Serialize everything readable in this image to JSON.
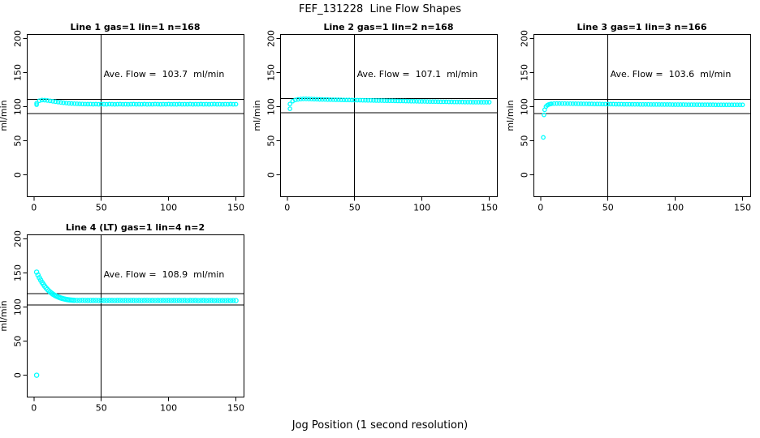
{
  "page": {
    "title": "FEF_131228  Line Flow Shapes",
    "xlabel_bottom": "Jog Position (1 second resolution)"
  },
  "style": {
    "point_color": "#00ffff",
    "axis_color": "#000000",
    "background": "#ffffff",
    "marker_stroke_width": 1.3
  },
  "chart_data": [
    {
      "type": "scatter",
      "title": "Line 1 gas=1 lin=1 n=168",
      "n": 168,
      "ave_flow": 103.7,
      "ave_flow_label": "Ave. Flow =  103.7  ml/min",
      "ylabel": "ml/min",
      "xticks": [
        0,
        50,
        100,
        150
      ],
      "yticks": [
        0,
        50,
        100,
        150,
        200
      ],
      "xlim": [
        -5,
        156
      ],
      "ylim": [
        -32,
        206
      ],
      "vline": 50,
      "hlines": [
        111,
        90
      ],
      "marker_radius": 2.2,
      "points": [
        [
          2,
          103
        ],
        [
          2,
          105.2
        ],
        [
          4,
          108.8
        ],
        [
          6,
          109.8
        ],
        [
          8,
          109.6
        ],
        [
          10,
          109.2
        ],
        [
          12,
          108.6
        ],
        [
          14,
          108.0
        ],
        [
          16,
          107.4
        ],
        [
          18,
          106.8
        ],
        [
          20,
          106.3
        ],
        [
          22,
          105.8
        ],
        [
          24,
          105.4
        ],
        [
          26,
          105.0
        ],
        [
          28,
          104.7
        ],
        [
          30,
          104.5
        ],
        [
          32,
          104.3
        ],
        [
          34,
          104.1
        ],
        [
          36,
          104.0
        ],
        [
          38,
          103.9
        ],
        [
          40,
          103.8
        ],
        [
          42,
          103.9
        ],
        [
          44,
          103.7
        ],
        [
          46,
          103.8
        ],
        [
          48,
          103.6
        ],
        [
          50,
          103.8
        ],
        [
          52,
          103.7
        ],
        [
          54,
          103.6
        ],
        [
          56,
          103.8
        ],
        [
          58,
          103.7
        ],
        [
          60,
          103.5
        ],
        [
          62,
          103.7
        ],
        [
          64,
          103.8
        ],
        [
          66,
          103.6
        ],
        [
          68,
          103.7
        ],
        [
          70,
          103.5
        ],
        [
          72,
          103.7
        ],
        [
          74,
          103.8
        ],
        [
          76,
          103.6
        ],
        [
          78,
          103.7
        ],
        [
          80,
          103.6
        ],
        [
          82,
          103.8
        ],
        [
          84,
          103.5
        ],
        [
          86,
          103.7
        ],
        [
          88,
          103.6
        ],
        [
          90,
          103.8
        ],
        [
          92,
          103.7
        ],
        [
          94,
          103.5
        ],
        [
          96,
          103.7
        ],
        [
          98,
          103.6
        ],
        [
          100,
          103.8
        ],
        [
          102,
          103.6
        ],
        [
          104,
          103.7
        ],
        [
          106,
          103.5
        ],
        [
          108,
          103.8
        ],
        [
          110,
          103.6
        ],
        [
          112,
          103.7
        ],
        [
          114,
          103.6
        ],
        [
          116,
          103.8
        ],
        [
          118,
          103.5
        ],
        [
          120,
          103.7
        ],
        [
          122,
          103.6
        ],
        [
          124,
          103.8
        ],
        [
          126,
          103.6
        ],
        [
          128,
          103.7
        ],
        [
          130,
          103.5
        ],
        [
          132,
          103.7
        ],
        [
          134,
          103.8
        ],
        [
          136,
          103.6
        ],
        [
          138,
          103.7
        ],
        [
          140,
          103.5
        ],
        [
          142,
          103.7
        ],
        [
          144,
          103.6
        ],
        [
          146,
          103.8
        ],
        [
          148,
          103.6
        ],
        [
          150,
          103.7
        ]
      ]
    },
    {
      "type": "scatter",
      "title": "Line 2 gas=1 lin=2 n=168",
      "n": 168,
      "ave_flow": 107.1,
      "ave_flow_label": "Ave. Flow =  107.1  ml/min",
      "ylabel": "ml/min",
      "xticks": [
        0,
        50,
        100,
        150
      ],
      "yticks": [
        0,
        50,
        100,
        150,
        200
      ],
      "xlim": [
        -5,
        156
      ],
      "ylim": [
        -32,
        206
      ],
      "vline": 50,
      "hlines": [
        112,
        91
      ],
      "marker_radius": 2.2,
      "points": [
        [
          2,
          97
        ],
        [
          2,
          104
        ],
        [
          4,
          108.2
        ],
        [
          6,
          109.9
        ],
        [
          8,
          110.8
        ],
        [
          10,
          111.3
        ],
        [
          12,
          111.5
        ],
        [
          14,
          111.5
        ],
        [
          16,
          111.4
        ],
        [
          18,
          111.3
        ],
        [
          20,
          111.1
        ],
        [
          22,
          111.0
        ],
        [
          24,
          110.8
        ],
        [
          26,
          110.7
        ],
        [
          28,
          110.6
        ],
        [
          30,
          110.5
        ],
        [
          32,
          110.4
        ],
        [
          34,
          110.3
        ],
        [
          36,
          110.2
        ],
        [
          38,
          110.2
        ],
        [
          40,
          110.1
        ],
        [
          42,
          110.0
        ],
        [
          44,
          109.9
        ],
        [
          46,
          109.9
        ],
        [
          48,
          109.8
        ],
        [
          50,
          109.7
        ],
        [
          52,
          109.6
        ],
        [
          54,
          109.6
        ],
        [
          56,
          109.5
        ],
        [
          58,
          109.4
        ],
        [
          60,
          109.3
        ],
        [
          62,
          109.3
        ],
        [
          64,
          109.2
        ],
        [
          66,
          109.1
        ],
        [
          68,
          109.0
        ],
        [
          70,
          109.0
        ],
        [
          72,
          108.9
        ],
        [
          74,
          108.8
        ],
        [
          76,
          108.7
        ],
        [
          78,
          108.7
        ],
        [
          80,
          108.6
        ],
        [
          82,
          108.5
        ],
        [
          84,
          108.4
        ],
        [
          86,
          108.4
        ],
        [
          88,
          108.3
        ],
        [
          90,
          108.2
        ],
        [
          92,
          108.1
        ],
        [
          94,
          108.1
        ],
        [
          96,
          108.0
        ],
        [
          98,
          107.9
        ],
        [
          100,
          107.8
        ],
        [
          102,
          107.8
        ],
        [
          104,
          107.7
        ],
        [
          106,
          107.6
        ],
        [
          108,
          107.5
        ],
        [
          110,
          107.5
        ],
        [
          112,
          107.4
        ],
        [
          114,
          107.3
        ],
        [
          116,
          107.3
        ],
        [
          118,
          107.2
        ],
        [
          120,
          107.1
        ],
        [
          122,
          107.1
        ],
        [
          124,
          107.0
        ],
        [
          126,
          107.0
        ],
        [
          128,
          106.9
        ],
        [
          130,
          106.9
        ],
        [
          132,
          106.8
        ],
        [
          134,
          106.8
        ],
        [
          136,
          106.8
        ],
        [
          138,
          106.7
        ],
        [
          140,
          106.7
        ],
        [
          142,
          106.7
        ],
        [
          144,
          106.6
        ],
        [
          146,
          106.6
        ],
        [
          148,
          106.6
        ],
        [
          150,
          106.6
        ]
      ]
    },
    {
      "type": "scatter",
      "title": "Line 3 gas=1 lin=3 n=166",
      "n": 166,
      "ave_flow": 103.6,
      "ave_flow_label": "Ave. Flow =  103.6  ml/min",
      "ylabel": "ml/min",
      "xticks": [
        0,
        50,
        100,
        150
      ],
      "yticks": [
        0,
        50,
        100,
        150,
        200
      ],
      "xlim": [
        -5,
        156
      ],
      "ylim": [
        -32,
        206
      ],
      "vline": 50,
      "hlines": [
        111,
        90
      ],
      "marker_radius": 2.2,
      "points": [
        [
          2,
          55
        ],
        [
          2.5,
          88
        ],
        [
          3,
          95.5
        ],
        [
          4,
          100.2
        ],
        [
          5,
          102.2
        ],
        [
          6,
          103.3
        ],
        [
          7,
          103.9
        ],
        [
          8,
          104.3
        ],
        [
          10,
          104.6
        ],
        [
          12,
          104.7
        ],
        [
          14,
          104.7
        ],
        [
          16,
          104.6
        ],
        [
          18,
          104.6
        ],
        [
          20,
          104.5
        ],
        [
          22,
          104.5
        ],
        [
          24,
          104.4
        ],
        [
          26,
          104.4
        ],
        [
          28,
          104.3
        ],
        [
          30,
          104.3
        ],
        [
          32,
          104.2
        ],
        [
          34,
          104.2
        ],
        [
          36,
          104.1
        ],
        [
          38,
          104.1
        ],
        [
          40,
          104.0
        ],
        [
          42,
          104.0
        ],
        [
          44,
          104.0
        ],
        [
          46,
          103.9
        ],
        [
          48,
          103.9
        ],
        [
          50,
          103.8
        ],
        [
          52,
          103.8
        ],
        [
          54,
          103.8
        ],
        [
          56,
          103.7
        ],
        [
          58,
          103.7
        ],
        [
          60,
          103.7
        ],
        [
          62,
          103.6
        ],
        [
          64,
          103.6
        ],
        [
          66,
          103.6
        ],
        [
          68,
          103.5
        ],
        [
          70,
          103.5
        ],
        [
          72,
          103.5
        ],
        [
          74,
          103.4
        ],
        [
          76,
          103.4
        ],
        [
          78,
          103.4
        ],
        [
          80,
          103.4
        ],
        [
          82,
          103.3
        ],
        [
          84,
          103.3
        ],
        [
          86,
          103.3
        ],
        [
          88,
          103.3
        ],
        [
          90,
          103.2
        ],
        [
          92,
          103.2
        ],
        [
          94,
          103.2
        ],
        [
          96,
          103.2
        ],
        [
          98,
          103.1
        ],
        [
          100,
          103.1
        ],
        [
          102,
          103.1
        ],
        [
          104,
          103.1
        ],
        [
          106,
          103.1
        ],
        [
          108,
          103.0
        ],
        [
          110,
          103.0
        ],
        [
          112,
          103.0
        ],
        [
          114,
          103.0
        ],
        [
          116,
          103.0
        ],
        [
          118,
          102.9
        ],
        [
          120,
          102.9
        ],
        [
          122,
          102.9
        ],
        [
          124,
          102.9
        ],
        [
          126,
          102.9
        ],
        [
          128,
          102.9
        ],
        [
          130,
          102.8
        ],
        [
          132,
          102.8
        ],
        [
          134,
          102.8
        ],
        [
          136,
          102.8
        ],
        [
          138,
          102.8
        ],
        [
          140,
          102.8
        ],
        [
          142,
          102.8
        ],
        [
          144,
          102.8
        ],
        [
          146,
          102.8
        ],
        [
          148,
          102.8
        ],
        [
          150,
          102.8
        ]
      ]
    },
    {
      "type": "scatter",
      "title": "Line 4 (LT) gas=1 lin=4 n=2",
      "n": 2,
      "ave_flow": 108.9,
      "ave_flow_label": "Ave. Flow =  108.9  ml/min",
      "ylabel": "ml/min",
      "xticks": [
        0,
        50,
        100,
        150
      ],
      "yticks": [
        0,
        50,
        100,
        150,
        200
      ],
      "xlim": [
        -5,
        156
      ],
      "ylim": [
        -32,
        206
      ],
      "vline": 50,
      "hlines": [
        119.5,
        103
      ],
      "marker_radius": 2.6,
      "points": [
        [
          2,
          0
        ],
        [
          2,
          151.3
        ],
        [
          3,
          147.0
        ],
        [
          4,
          143.1
        ],
        [
          5,
          139.6
        ],
        [
          6,
          136.3
        ],
        [
          7,
          133.3
        ],
        [
          8,
          130.6
        ],
        [
          9,
          128.1
        ],
        [
          10,
          125.9
        ],
        [
          11,
          123.9
        ],
        [
          12,
          122.1
        ],
        [
          13,
          120.5
        ],
        [
          14,
          119.1
        ],
        [
          15,
          117.8
        ],
        [
          16,
          116.7
        ],
        [
          17,
          115.7
        ],
        [
          18,
          114.8
        ],
        [
          19,
          114.0
        ],
        [
          20,
          113.3
        ],
        [
          21,
          112.7
        ],
        [
          22,
          112.2
        ],
        [
          23,
          111.7
        ],
        [
          24,
          111.3
        ],
        [
          25,
          110.9
        ],
        [
          26,
          110.6
        ],
        [
          27,
          110.4
        ],
        [
          28,
          110.2
        ],
        [
          29,
          110.0
        ],
        [
          30,
          109.9
        ],
        [
          32,
          109.8
        ],
        [
          34,
          109.8
        ],
        [
          36,
          109.9
        ],
        [
          38,
          109.8
        ],
        [
          40,
          109.7
        ],
        [
          42,
          109.8
        ],
        [
          44,
          109.7
        ],
        [
          46,
          109.8
        ],
        [
          48,
          109.6
        ],
        [
          50,
          109.8
        ],
        [
          52,
          109.7
        ],
        [
          54,
          109.6
        ],
        [
          56,
          109.8
        ],
        [
          58,
          109.7
        ],
        [
          60,
          109.6
        ],
        [
          62,
          109.7
        ],
        [
          64,
          109.8
        ],
        [
          66,
          109.6
        ],
        [
          68,
          109.7
        ],
        [
          70,
          109.6
        ],
        [
          72,
          109.8
        ],
        [
          74,
          109.7
        ],
        [
          76,
          109.6
        ],
        [
          78,
          109.7
        ],
        [
          80,
          109.6
        ],
        [
          82,
          109.7
        ],
        [
          84,
          109.8
        ],
        [
          86,
          109.6
        ],
        [
          88,
          109.7
        ],
        [
          90,
          109.6
        ],
        [
          92,
          109.7
        ],
        [
          94,
          109.6
        ],
        [
          96,
          109.7
        ],
        [
          98,
          109.6
        ],
        [
          100,
          109.7
        ],
        [
          102,
          109.6
        ],
        [
          104,
          109.7
        ],
        [
          106,
          109.6
        ],
        [
          108,
          109.7
        ],
        [
          110,
          109.6
        ],
        [
          112,
          109.7
        ],
        [
          114,
          109.5
        ],
        [
          116,
          109.7
        ],
        [
          118,
          109.6
        ],
        [
          120,
          109.7
        ],
        [
          122,
          109.5
        ],
        [
          124,
          109.6
        ],
        [
          126,
          109.7
        ],
        [
          128,
          109.5
        ],
        [
          130,
          109.6
        ],
        [
          132,
          109.7
        ],
        [
          134,
          109.5
        ],
        [
          136,
          109.6
        ],
        [
          138,
          109.5
        ],
        [
          140,
          109.6
        ],
        [
          142,
          109.5
        ],
        [
          144,
          109.6
        ],
        [
          146,
          109.5
        ],
        [
          148,
          109.6
        ],
        [
          150,
          109.5
        ]
      ]
    }
  ]
}
